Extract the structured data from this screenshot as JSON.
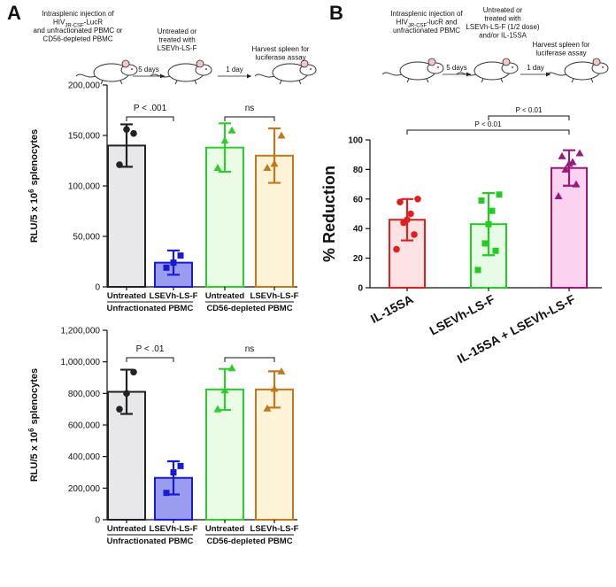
{
  "figure": {
    "panel_labels": [
      "A",
      "B"
    ],
    "schematics": [
      {
        "steps": [
          [
            "Intrasplenic injection of",
            [
              "HIV",
              "JR-CSF",
              "-LucR"
            ],
            "and unfractionated PBMC or",
            "CD56-depleted PBMC"
          ],
          [
            "Untreated or",
            "treated with",
            "LSEVh-LS-F"
          ],
          [
            "Harvest spleen for",
            "luciferase assay"
          ]
        ],
        "arrows": [
          "5 days",
          "1 day"
        ]
      },
      {
        "steps": [
          [
            "Intrasplenic injection of",
            [
              "HIV",
              "JR-CSF",
              "-lucR and"
            ],
            "unfractionated PBMC"
          ],
          [
            "Untreated or",
            "treated with",
            "LSEVh-LS-F (1/2 dose)",
            "and/or IL-15SA"
          ],
          [
            "Harvest spleen for",
            "luciferase assay"
          ]
        ],
        "arrows": [
          "5 days",
          "1 day"
        ]
      }
    ]
  },
  "chart_data": [
    {
      "type": "bar",
      "y_label": "RLU/5 x 10",
      "y_label_sup": "6",
      "y_label_end": "splenocytes",
      "categories": [
        "Untreated",
        "LSEVh-LS-F",
        "Untreated",
        "LSEVh-LS-F"
      ],
      "groups": [
        "Unfractionated PBMC",
        "CD56-depleted PBMC"
      ],
      "values": [
        140000,
        24000,
        138000,
        130000
      ],
      "errors": [
        21000,
        12000,
        24000,
        27000
      ],
      "points": [
        [
          152000,
          156000,
          121000
        ],
        [
          31000,
          24000,
          19000
        ],
        [
          155000,
          145000,
          118000
        ],
        [
          150000,
          122000,
          118000
        ]
      ],
      "markers": [
        "circle",
        "square",
        "triangle",
        "triangle"
      ],
      "colors": [
        "#222222",
        "#1a1ad6",
        "#2ecc2e",
        "#c07a1e"
      ],
      "fill_colors": [
        "#e8e8ea",
        "#9a9cf0",
        "#eafce6",
        "#fdf3d6"
      ],
      "annotations": [
        "P < .001",
        "ns"
      ],
      "ylim": [
        0,
        200000
      ],
      "yticks": [
        0,
        {
          "value": 50000,
          "label": "50,000"
        },
        {
          "value": 100000,
          "label": "100,000"
        },
        {
          "value": 150000,
          "label": "150,000"
        },
        {
          "value": 200000,
          "label": "200,000"
        }
      ]
    },
    {
      "type": "bar",
      "y_label": "RLU/5 x 10",
      "y_label_sup": "6",
      "y_label_end": "splenocytes",
      "categories": [
        "Untreated",
        "LSEVh-LS-F",
        "Untreated",
        "LSEVh-LS-F"
      ],
      "groups": [
        "Unfractionated PBMC",
        "CD56-depleted PBMC"
      ],
      "values": [
        810000,
        265000,
        825000,
        825000
      ],
      "errors": [
        140000,
        105000,
        130000,
        115000
      ],
      "points": [
        [
          935000,
          800000,
          700000
        ],
        [
          340000,
          300000,
          170000
        ],
        [
          960000,
          820000,
          700000
        ],
        [
          940000,
          830000,
          705000
        ]
      ],
      "markers": [
        "circle",
        "square",
        "triangle",
        "triangle"
      ],
      "colors": [
        "#222222",
        "#1a1ad6",
        "#2ecc2e",
        "#c07a1e"
      ],
      "fill_colors": [
        "#e8e8ea",
        "#9a9cf0",
        "#eafce6",
        "#fdf3d6"
      ],
      "annotations": [
        "P < .01",
        "ns"
      ],
      "ylim": [
        0,
        1200000
      ],
      "yticks": [
        0,
        {
          "value": 200000,
          "label": "200,000"
        },
        {
          "value": 400000,
          "label": "400,000"
        },
        {
          "value": 600000,
          "label": "600,000"
        },
        {
          "value": 800000,
          "label": "800,000"
        },
        {
          "value": 1000000,
          "label": "1,000,000"
        },
        {
          "value": 1200000,
          "label": "1,200,000"
        }
      ]
    },
    {
      "type": "bar",
      "y_label": "% Reduction",
      "categories": [
        "IL-15SA",
        "LSEVh-LS-F",
        "IL-15SA + LSEVh-LS-F"
      ],
      "values": [
        46,
        43,
        81
      ],
      "errors": [
        14,
        21,
        12
      ],
      "points": [
        [
          60,
          58,
          50,
          46,
          44,
          36,
          26
        ],
        [
          63,
          59,
          52,
          43,
          30,
          25,
          12
        ],
        [
          91,
          89,
          85,
          84,
          80,
          70,
          62
        ]
      ],
      "markers": [
        "circle",
        "square",
        "triangle"
      ],
      "colors": [
        "#e02020",
        "#22cc22",
        "#9a1a7a"
      ],
      "fill_colors": [
        "#fde3e3",
        "#e6fce6",
        "#fbd3f0"
      ],
      "annotations": [
        "P < 0.01",
        "P < 0.01"
      ],
      "ylim": [
        0,
        100
      ],
      "yticks": [
        0,
        20,
        40,
        60,
        80,
        100
      ]
    }
  ]
}
